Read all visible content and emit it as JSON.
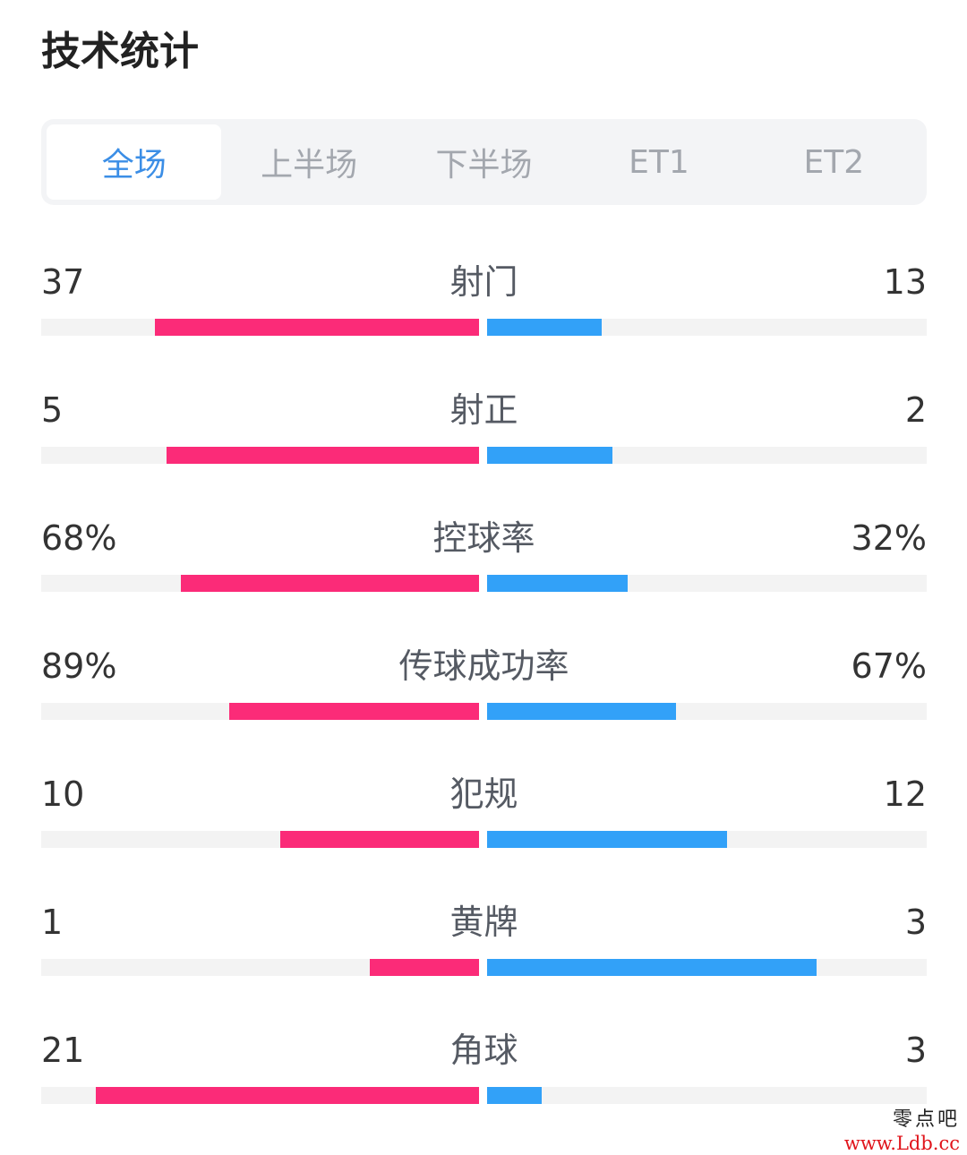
{
  "page_title": "技术统计",
  "tabs": [
    {
      "label": "全场",
      "active": true
    },
    {
      "label": "上半场",
      "active": false
    },
    {
      "label": "下半场",
      "active": false
    },
    {
      "label": "ET1",
      "active": false
    },
    {
      "label": "ET2",
      "active": false
    }
  ],
  "colors": {
    "home": "#fb2b78",
    "away": "#32a1f8",
    "active_tab": "#3b8ee6"
  },
  "stats": [
    {
      "name": "射门",
      "home": "37",
      "away": "13",
      "home_share": 0.74,
      "away_share": 0.26
    },
    {
      "name": "射正",
      "home": "5",
      "away": "2",
      "home_share": 0.714,
      "away_share": 0.286
    },
    {
      "name": "控球率",
      "home": "68%",
      "away": "32%",
      "home_share": 0.68,
      "away_share": 0.32
    },
    {
      "name": "传球成功率",
      "home": "89%",
      "away": "67%",
      "home_share": 0.57,
      "away_share": 0.43
    },
    {
      "name": "犯规",
      "home": "10",
      "away": "12",
      "home_share": 0.455,
      "away_share": 0.545
    },
    {
      "name": "黄牌",
      "home": "1",
      "away": "3",
      "home_share": 0.25,
      "away_share": 0.75
    },
    {
      "name": "角球",
      "home": "21",
      "away": "3",
      "home_share": 0.875,
      "away_share": 0.125
    }
  ],
  "watermark": {
    "cn": "零点吧",
    "url": "www.Ldb.cc"
  }
}
